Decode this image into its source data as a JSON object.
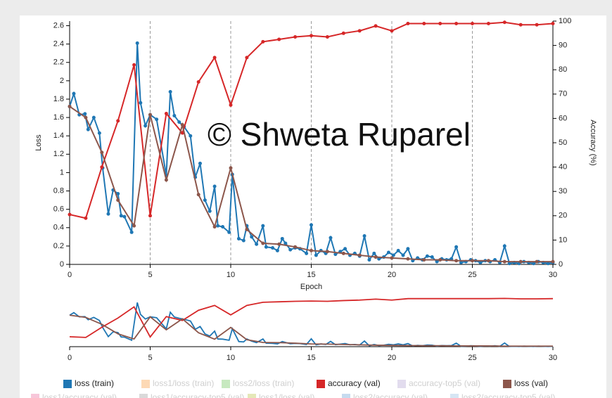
{
  "chart_data": {
    "type": "line",
    "watermark": "© Shweta Ruparel",
    "xlabel": "Epoch",
    "ylabel": "Loss",
    "y2label": "Accuracy (%)",
    "xlim": [
      0,
      30
    ],
    "xticks": [
      0,
      5,
      10,
      15,
      20,
      25,
      30
    ],
    "ylim": [
      0,
      2.65
    ],
    "yticks": [
      0,
      0.2,
      0.4,
      0.6,
      0.8,
      1,
      1.2,
      1.4,
      1.6,
      1.8,
      2,
      2.2,
      2.4,
      2.6
    ],
    "y2lim": [
      0,
      100
    ],
    "y2ticks": [
      0,
      10,
      20,
      30,
      40,
      50,
      60,
      70,
      80,
      90,
      100
    ],
    "grid": "x-dashed",
    "series": [
      {
        "name": "loss (train)",
        "color": "#1f77b4",
        "x": [
          0,
          0.26,
          0.6,
          0.95,
          1.15,
          1.5,
          1.85,
          2.05,
          2.4,
          2.7,
          3.0,
          3.2,
          3.4,
          3.85,
          4.2,
          4.4,
          4.7,
          5.0,
          5.4,
          6.0,
          6.25,
          6.5,
          6.8,
          7.1,
          7.5,
          7.8,
          8.1,
          8.4,
          8.7,
          9.0,
          9.2,
          9.5,
          9.9,
          10.1,
          10.5,
          10.8,
          11.0,
          11.3,
          11.6,
          12.0,
          12.2,
          12.6,
          12.9,
          13.2,
          13.4,
          13.7,
          14.0,
          14.3,
          14.7,
          15.0,
          15.3,
          15.6,
          15.9,
          16.2,
          16.5,
          16.8,
          17.1,
          17.4,
          17.7,
          18.0,
          18.3,
          18.6,
          18.9,
          19.2,
          19.5,
          19.8,
          20.1,
          20.4,
          20.7,
          21.0,
          21.3,
          21.6,
          21.9,
          22.2,
          22.5,
          22.8,
          23.1,
          23.4,
          23.7,
          24.0,
          24.3,
          24.6,
          24.9,
          25.2,
          25.5,
          25.8,
          26.1,
          26.4,
          26.7,
          27.0,
          27.3,
          27.6,
          27.9,
          28.2,
          28.5,
          28.8,
          29.1,
          29.4,
          29.7,
          30.0
        ],
        "values": [
          1.72,
          1.86,
          1.63,
          1.64,
          1.47,
          1.6,
          1.43,
          1.05,
          0.55,
          0.81,
          0.77,
          0.53,
          0.52,
          0.35,
          2.41,
          1.76,
          1.51,
          1.63,
          1.58,
          0.97,
          1.88,
          1.62,
          1.55,
          1.5,
          1.4,
          0.95,
          1.1,
          0.7,
          0.58,
          0.85,
          0.42,
          0.41,
          0.35,
          0.98,
          0.28,
          0.26,
          0.42,
          0.3,
          0.22,
          0.42,
          0.19,
          0.18,
          0.15,
          0.28,
          0.23,
          0.16,
          0.18,
          0.17,
          0.12,
          0.43,
          0.1,
          0.15,
          0.12,
          0.29,
          0.11,
          0.14,
          0.17,
          0.1,
          0.12,
          0.09,
          0.31,
          0.05,
          0.12,
          0.06,
          0.08,
          0.13,
          0.1,
          0.15,
          0.1,
          0.17,
          0.04,
          0.07,
          0.05,
          0.09,
          0.08,
          0.03,
          0.06,
          0.05,
          0.06,
          0.19,
          0.02,
          0.03,
          0.05,
          0.04,
          0.02,
          0.04,
          0.03,
          0.05,
          0.02,
          0.2,
          0.01,
          0.02,
          0.01,
          0.03,
          0.02,
          0.01,
          0.03,
          0.02,
          0.01,
          0.02
        ]
      },
      {
        "name": "accuracy (val)",
        "color": "#d62728",
        "axis": "y2",
        "x": [
          0,
          1,
          2,
          3,
          4,
          5,
          6,
          7,
          8,
          9,
          10,
          11,
          12,
          13,
          14,
          15,
          16,
          17,
          18,
          19,
          20,
          21,
          22,
          23,
          24,
          25,
          26,
          27,
          28,
          29,
          30
        ],
        "values": [
          20.5,
          19,
          40,
          59,
          82,
          20,
          62,
          54,
          75,
          85,
          65.5,
          85,
          91.5,
          92.5,
          93.5,
          94,
          93.5,
          95,
          96,
          98,
          96,
          99,
          99,
          99,
          99,
          99,
          99,
          99.5,
          98.5,
          98.5,
          99
        ]
      },
      {
        "name": "loss (val)",
        "color": "#8c564b",
        "x": [
          0,
          1,
          2,
          3,
          4,
          5,
          6,
          7,
          8,
          9,
          10,
          11,
          12,
          13,
          14,
          15,
          16,
          17,
          18,
          19,
          20,
          21,
          22,
          23,
          24,
          25,
          26,
          27,
          28,
          29,
          30
        ],
        "values": [
          1.72,
          1.6,
          1.22,
          0.7,
          0.42,
          1.63,
          0.92,
          1.52,
          0.76,
          0.41,
          1.05,
          0.38,
          0.23,
          0.22,
          0.19,
          0.15,
          0.14,
          0.12,
          0.1,
          0.08,
          0.07,
          0.06,
          0.05,
          0.05,
          0.04,
          0.04,
          0.04,
          0.03,
          0.03,
          0.03,
          0.03
        ]
      }
    ],
    "legend_inactive": [
      {
        "name": "loss1/loss (train)",
        "color": "#fdd9b5"
      },
      {
        "name": "loss2/loss (train)",
        "color": "#c7e9c0"
      },
      {
        "name": "accuracy-top5 (val)",
        "color": "#e2dcee"
      },
      {
        "name": "loss1/accuracy (val)",
        "color": "#f7c6d9"
      },
      {
        "name": "loss1/accuracy-top5 (val)",
        "color": "#d9d9d9"
      },
      {
        "name": "loss1/loss (val)",
        "color": "#e5e8b8"
      },
      {
        "name": "loss2/accuracy (val)",
        "color": "#c6dbef"
      },
      {
        "name": "loss2/accuracy-top5 (val)",
        "color": "#d6e6f4"
      }
    ]
  }
}
